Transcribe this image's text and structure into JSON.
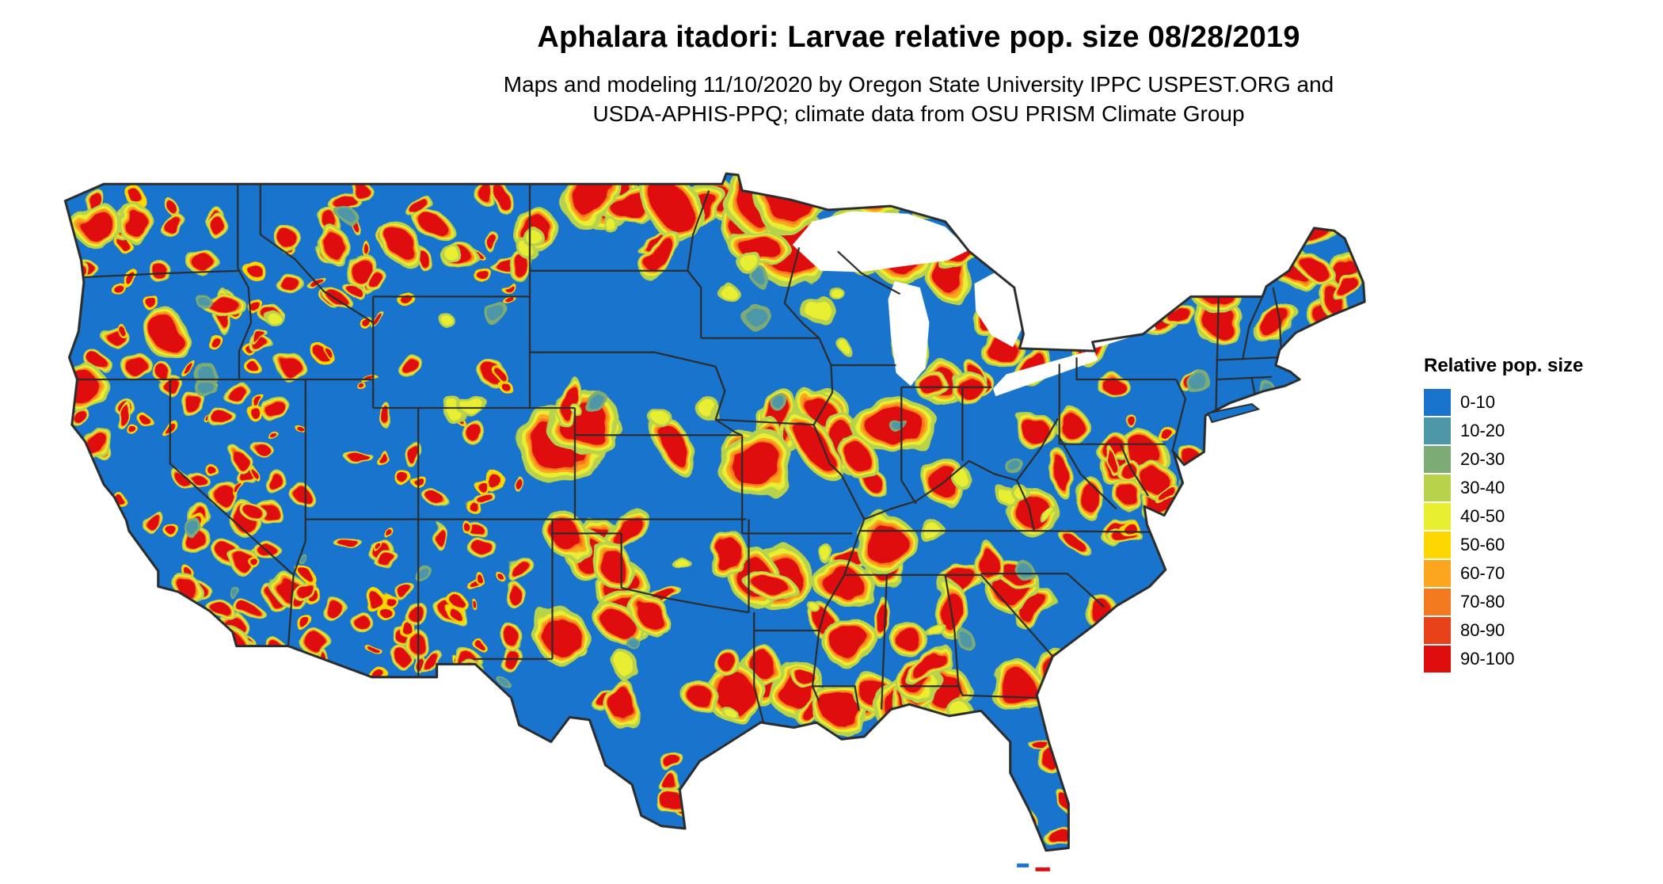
{
  "header": {
    "title": "Aphalara itadori: Larvae relative pop. size 08/28/2019",
    "subtitle": "Maps and modeling 11/10/2020 by Oregon State University IPPC USPEST.ORG and USDA-APHIS-PPQ; climate data from OSU PRISM Climate Group"
  },
  "legend": {
    "title": "Relative pop. size",
    "items": [
      {
        "label": "0-10",
        "color": "#1874cd"
      },
      {
        "label": "10-20",
        "color": "#4e97a8"
      },
      {
        "label": "20-30",
        "color": "#7dab76"
      },
      {
        "label": "30-40",
        "color": "#b9d24b"
      },
      {
        "label": "40-50",
        "color": "#e8ee30"
      },
      {
        "label": "50-60",
        "color": "#ffd700"
      },
      {
        "label": "60-70",
        "color": "#fba61e"
      },
      {
        "label": "70-80",
        "color": "#f47a1f"
      },
      {
        "label": "80-90",
        "color": "#e8421a"
      },
      {
        "label": "90-100",
        "color": "#df0d0d"
      }
    ]
  },
  "map": {
    "region": "Continental United States",
    "base_color": "#1874cd",
    "border_color": "#2b2b2b",
    "water_color": "#ffffff"
  }
}
